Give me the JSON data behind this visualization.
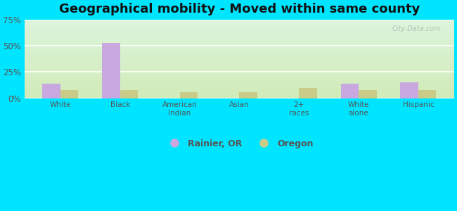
{
  "title": "Geographical mobility - Moved within same county",
  "categories": [
    "White",
    "Black",
    "American\nIndian",
    "Asian",
    "2+\nraces",
    "White\nalone",
    "Hispanic"
  ],
  "rainier_values": [
    14,
    53,
    0,
    0,
    0,
    14,
    15
  ],
  "oregon_values": [
    8,
    8,
    6,
    6,
    10,
    8,
    8
  ],
  "rainier_color": "#c9a8e0",
  "oregon_color": "#c8cc88",
  "ylim": [
    0,
    75
  ],
  "yticks": [
    0,
    25,
    50,
    75
  ],
  "ytick_labels": [
    "0%",
    "25%",
    "50%",
    "75%"
  ],
  "bg_color_topleft": "#d4eed8",
  "bg_color_topright": "#e8f5e8",
  "bg_color_bottom": "#f0f5e0",
  "outer_background": "#00e5ff",
  "title_fontsize": 13,
  "legend_labels": [
    "Rainier, OR",
    "Oregon"
  ],
  "bar_width": 0.3,
  "watermark": "City-Data.com"
}
